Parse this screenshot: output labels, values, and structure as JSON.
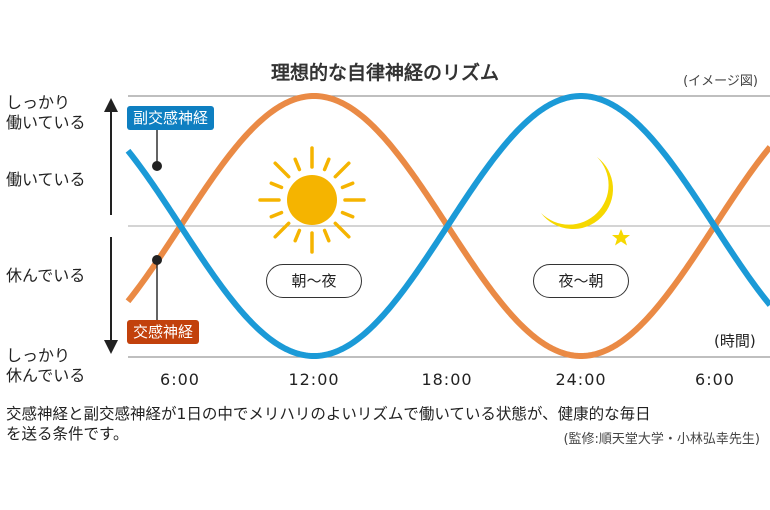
{
  "title": "理想的な自律神経のリズム",
  "note": "(イメージ図)",
  "y_labels": {
    "strong_active_1": "しっかり",
    "strong_active_2": "働いている",
    "active": "働いている",
    "resting": "休んでいる",
    "deep_rest_1": "しっかり",
    "deep_rest_2": "休んでいる"
  },
  "series_labels": {
    "parasympathetic": "副交感神経",
    "sympathetic": "交感神経"
  },
  "pills": {
    "day": "朝〜夜",
    "night": "夜〜朝"
  },
  "x_unit": "(時間)",
  "x_ticks": [
    "6:00",
    "12:00",
    "18:00",
    "24:00",
    "6:00"
  ],
  "caption_1": "交感神経と副交感神経が1日の中でメリハリのよいリズムで働いている状態が、健康的な毎日",
  "caption_2": "を送る条件です。",
  "credit": "(監修:順天堂大学・小林弘幸先生)",
  "colors": {
    "parasympathetic": "#1b9ad7",
    "sympathetic": "#ea8a45",
    "sun": "#f5b400",
    "moon": "#f6d800"
  },
  "icons": [
    "sun-icon",
    "moon-icon",
    "star-icon",
    "arrow-up-icon",
    "arrow-down-icon"
  ]
}
